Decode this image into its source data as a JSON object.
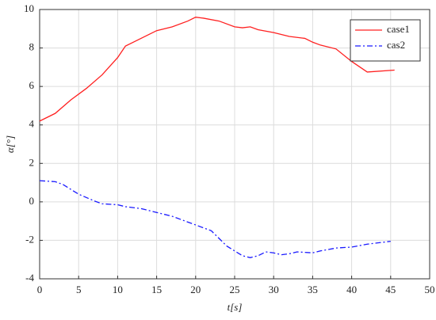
{
  "chart_data": {
    "type": "line",
    "x_label": "t[s]",
    "y_label": "α[°]",
    "xlim": [
      0,
      50
    ],
    "xticks": [
      0,
      5,
      10,
      15,
      20,
      25,
      30,
      35,
      40,
      45,
      50
    ],
    "ylim": [
      -4,
      10
    ],
    "yticks": [
      -4,
      -2,
      0,
      2,
      4,
      6,
      8,
      10
    ],
    "grid": true,
    "legend": "upper-right",
    "series": [
      {
        "name": "case1",
        "color": "#ff2020",
        "dash": "solid",
        "x": [
          0,
          2,
          4,
          6,
          8,
          10,
          11,
          12,
          13,
          15,
          17,
          19,
          20,
          21,
          23,
          25,
          26,
          27,
          28,
          30,
          32,
          34,
          35,
          36,
          38,
          40,
          42,
          45.5
        ],
        "values": [
          4.2,
          4.6,
          5.3,
          5.9,
          6.6,
          7.5,
          8.1,
          8.3,
          8.5,
          8.9,
          9.1,
          9.4,
          9.6,
          9.55,
          9.4,
          9.1,
          9.05,
          9.1,
          8.95,
          8.8,
          8.6,
          8.5,
          8.3,
          8.15,
          7.95,
          7.3,
          6.75,
          6.85
        ]
      },
      {
        "name": "cas2",
        "color": "#1a1aff",
        "dash": "dashdot",
        "x": [
          0,
          2,
          3,
          5,
          7,
          8,
          10,
          11,
          13,
          15,
          17,
          19,
          21,
          22,
          23,
          24,
          25,
          26,
          27,
          28,
          29,
          30,
          31,
          32,
          33,
          35,
          36,
          38,
          40,
          42,
          45
        ],
        "values": [
          1.1,
          1.05,
          0.9,
          0.4,
          0.05,
          -0.1,
          -0.15,
          -0.25,
          -0.35,
          -0.55,
          -0.75,
          -1.05,
          -1.35,
          -1.5,
          -1.9,
          -2.3,
          -2.55,
          -2.8,
          -2.9,
          -2.8,
          -2.6,
          -2.65,
          -2.75,
          -2.7,
          -2.6,
          -2.65,
          -2.55,
          -2.4,
          -2.35,
          -2.2,
          -2.05
        ]
      }
    ]
  }
}
